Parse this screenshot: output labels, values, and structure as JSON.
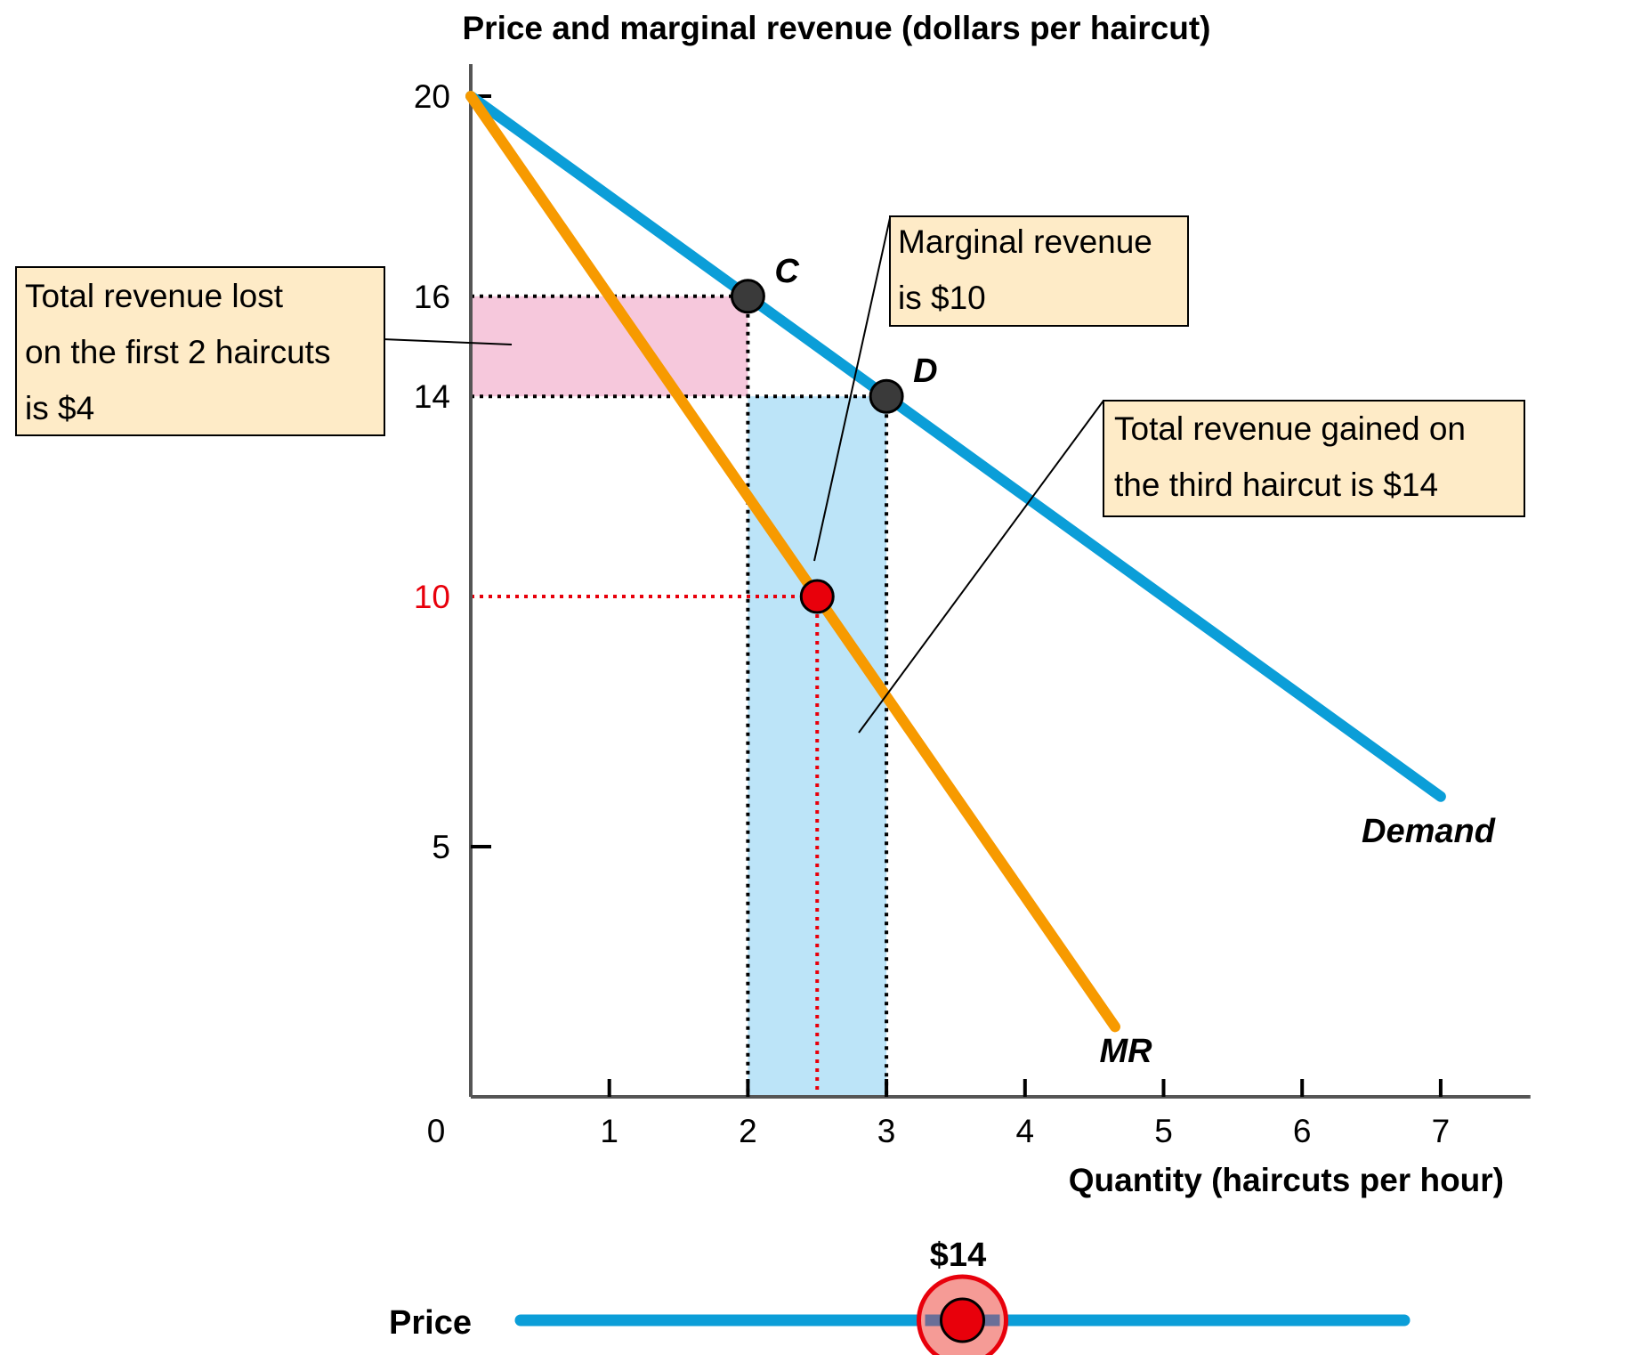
{
  "chart_data": {
    "type": "line",
    "title": "Price and marginal revenue (dollars per haircut)",
    "xlabel": "Quantity (haircuts per hour)",
    "ylabel": "Price and marginal revenue (dollars per haircut)",
    "xlim": [
      0,
      7.5
    ],
    "ylim": [
      0,
      20
    ],
    "x_ticks": [
      0,
      1,
      2,
      3,
      4,
      5,
      6,
      7
    ],
    "x_tick_labels": [
      "0",
      "1",
      "2",
      "3",
      "4",
      "5",
      "6",
      "7"
    ],
    "y_ticks": [
      5,
      10,
      14,
      16,
      20
    ],
    "y_tick_labels": [
      "5",
      "10",
      "14",
      "16",
      "20"
    ],
    "highlight_y_tick": "10",
    "grid": false,
    "series": [
      {
        "name": "Demand",
        "color": "#0b9ed8",
        "x": [
          0,
          7
        ],
        "y": [
          20,
          6
        ]
      },
      {
        "name": "MR",
        "color": "#f79a00",
        "x": [
          0,
          4.65
        ],
        "y": [
          20,
          1.4
        ]
      }
    ],
    "points": [
      {
        "label": "C",
        "x": 2,
        "y": 16,
        "color": "#3a3a3a"
      },
      {
        "label": "D",
        "x": 3,
        "y": 14,
        "color": "#3a3a3a"
      },
      {
        "label": "",
        "x": 2.5,
        "y": 10,
        "color": "#e8000b"
      }
    ],
    "shaded_areas": [
      {
        "name": "revenue-lost",
        "x": [
          0,
          2
        ],
        "y": [
          14,
          16
        ],
        "color": "#f6c8dc"
      },
      {
        "name": "revenue-gained",
        "x": [
          2,
          3
        ],
        "y": [
          0,
          14
        ],
        "color": "#bce4f8"
      }
    ],
    "annotations": [
      {
        "key": "lost",
        "lines": [
          "Total revenue lost",
          "on the first 2 haircuts",
          "is $4"
        ]
      },
      {
        "key": "mr",
        "lines": [
          "Marginal revenue",
          "is $10"
        ]
      },
      {
        "key": "gained",
        "lines": [
          "Total revenue gained on",
          "the third haircut is $14"
        ]
      }
    ]
  },
  "slider": {
    "label": "Price",
    "value_label": "$14",
    "value": 14,
    "position_fraction": 0.5,
    "track_color": "#0b9ed8",
    "knob_color": "#e8000b"
  }
}
